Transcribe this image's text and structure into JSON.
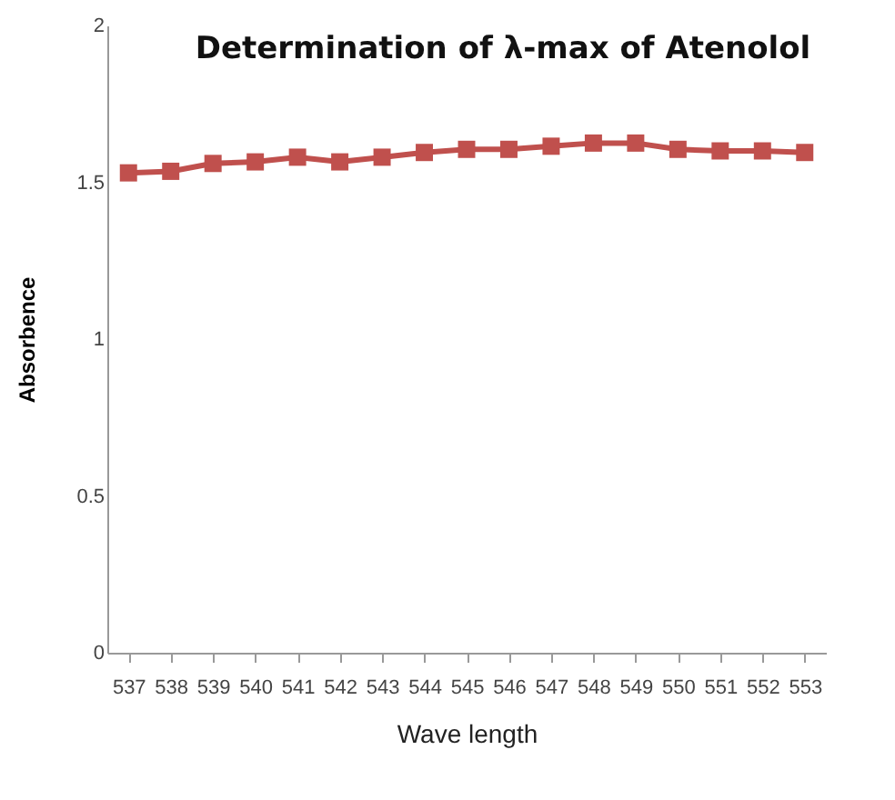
{
  "chart_data": {
    "type": "line",
    "title": "Determination of  λ-max of Atenolol",
    "xlabel": "Wave length",
    "ylabel": "Absorbence",
    "categories": [
      "537",
      "538",
      "539",
      "540",
      "541",
      "542",
      "543",
      "544",
      "545",
      "546",
      "547",
      "548",
      "549",
      "550",
      "551",
      "552",
      "553"
    ],
    "series": [
      {
        "color": "#c0504d",
        "values": [
          1.53,
          1.535,
          1.56,
          1.565,
          1.58,
          1.565,
          1.58,
          1.595,
          1.605,
          1.605,
          1.615,
          1.625,
          1.625,
          1.605,
          1.6,
          1.6,
          1.595
        ]
      }
    ],
    "ylim": [
      0,
      2
    ],
    "yticks": [
      0,
      0.5,
      1,
      1.5,
      2
    ],
    "marker": "square",
    "grid": false,
    "legend": false
  }
}
